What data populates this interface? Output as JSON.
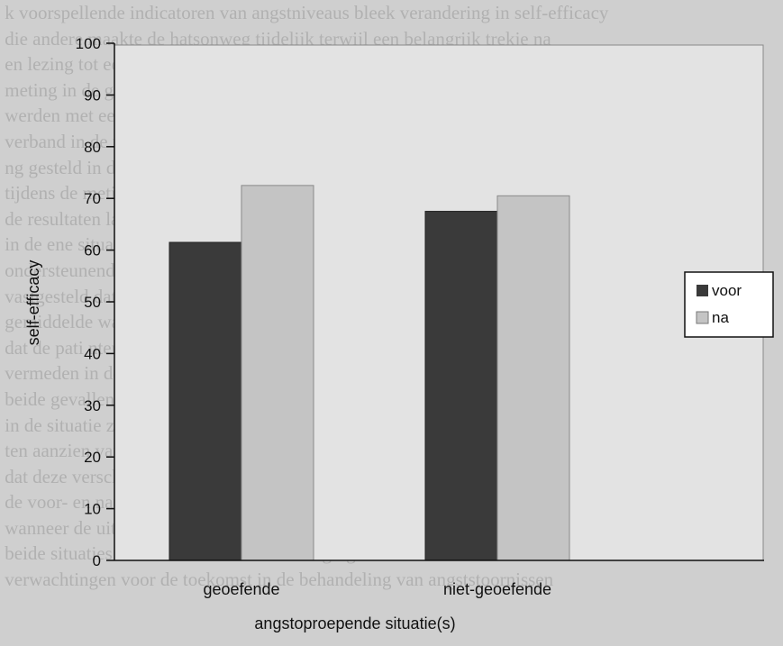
{
  "chart_data": {
    "type": "bar",
    "categories": [
      "geoefende",
      "niet-geoefende"
    ],
    "series": [
      {
        "name": "voor",
        "values": [
          61.5,
          67.5
        ],
        "color": "#3a3a3a"
      },
      {
        "name": "na",
        "values": [
          72.5,
          70.5
        ],
        "color": "#c4c4c4"
      }
    ],
    "xlabel": "angstoproepende situatie(s)",
    "ylabel": "self-efficacy",
    "ylim": [
      0,
      100
    ],
    "yticks": [
      0,
      10,
      20,
      30,
      40,
      50,
      60,
      70,
      80,
      90,
      100
    ],
    "legend_position": "right",
    "grid": false
  }
}
